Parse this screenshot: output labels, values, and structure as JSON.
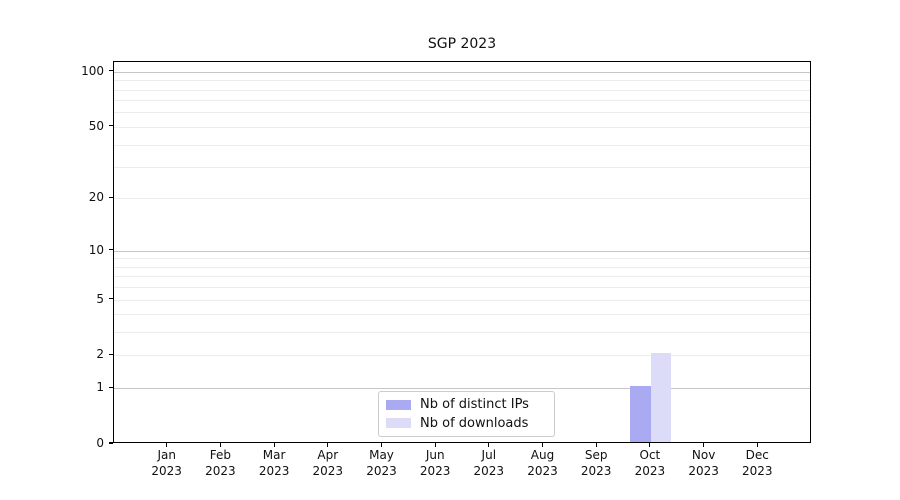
{
  "chart_data": {
    "type": "bar",
    "title": "SGP 2023",
    "xlabel": "",
    "ylabel": "",
    "categories": [
      {
        "month": "Jan",
        "year": "2023"
      },
      {
        "month": "Feb",
        "year": "2023"
      },
      {
        "month": "Mar",
        "year": "2023"
      },
      {
        "month": "Apr",
        "year": "2023"
      },
      {
        "month": "May",
        "year": "2023"
      },
      {
        "month": "Jun",
        "year": "2023"
      },
      {
        "month": "Jul",
        "year": "2023"
      },
      {
        "month": "Aug",
        "year": "2023"
      },
      {
        "month": "Sep",
        "year": "2023"
      },
      {
        "month": "Oct",
        "year": "2023"
      },
      {
        "month": "Nov",
        "year": "2023"
      },
      {
        "month": "Dec",
        "year": "2023"
      }
    ],
    "series": [
      {
        "name": "Nb of distinct IPs",
        "color": "#aaaaf2",
        "values": [
          0,
          0,
          0,
          0,
          0,
          0,
          0,
          0,
          0,
          1,
          0,
          0
        ]
      },
      {
        "name": "Nb of downloads",
        "color": "#dcdcf8",
        "values": [
          0,
          0,
          0,
          0,
          0,
          0,
          0,
          0,
          0,
          2,
          0,
          0
        ]
      }
    ],
    "y_axis": {
      "scale": "log1p",
      "ticks": [
        0,
        1,
        2,
        5,
        10,
        20,
        50,
        100
      ],
      "major_gridlines": [
        1,
        10,
        100
      ],
      "minor_gridlines": [
        2,
        3,
        4,
        5,
        6,
        7,
        8,
        9,
        20,
        30,
        40,
        50,
        60,
        70,
        80,
        90
      ],
      "ymax": 113
    },
    "grid": "horizontal",
    "legend_position": "bottom-center"
  },
  "colors": {
    "grid_major": "#c6c6c6",
    "grid_minor": "#ededed",
    "axis": "#000000",
    "bar_distinct_ips": "#aaaaf2",
    "bar_downloads": "#dcdcf8"
  }
}
